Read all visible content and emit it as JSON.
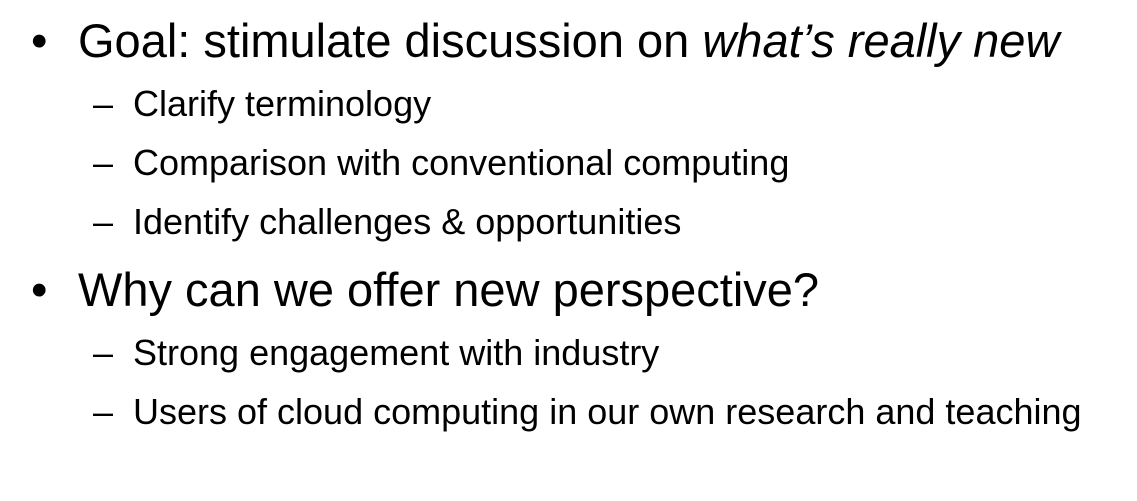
{
  "bullets": [
    {
      "text": "Goal: stimulate discussion on ",
      "emphasis": "what’s really new",
      "subitems": [
        "Clarify terminology",
        "Comparison with conventional computing",
        "Identify challenges & opportunities"
      ]
    },
    {
      "text": "Why can we offer new perspective?",
      "subitems": [
        "Strong engagement with industry",
        "Users of cloud computing in our own research and teaching"
      ]
    }
  ],
  "markers": {
    "bullet": "•",
    "dash": "–"
  }
}
